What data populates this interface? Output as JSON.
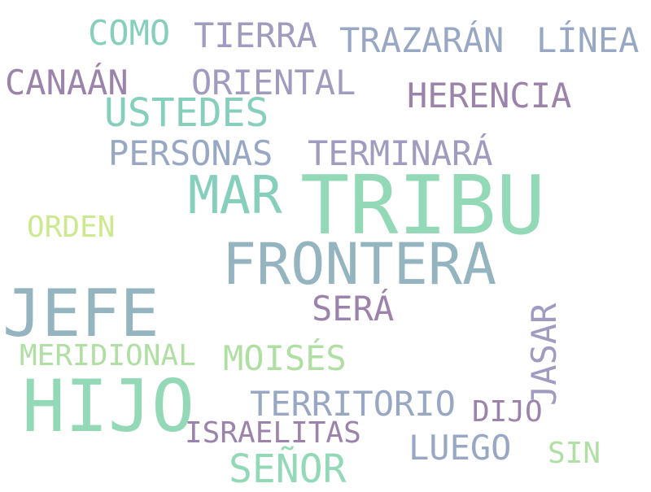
{
  "words": {
    "como": "COMO",
    "tierra": "TIERRA",
    "trazaran": "TRAZARÁN",
    "linea": "LÍNEA",
    "canaan": "CANAÁN",
    "oriental": "ORIENTAL",
    "ustedes": "USTEDES",
    "herencia": "HERENCIA",
    "personas": "PERSONAS",
    "terminara": "TERMINARÁ",
    "mar": "MAR",
    "tribu": "TRIBU",
    "orden": "ORDEN",
    "frontera": "FRONTERA",
    "jefe": "JEFE",
    "sera": "SERÁ",
    "jasar": "JASAR",
    "meridional": "MERIDIONAL",
    "moises": "MOISÉS",
    "hijo": "HIJO",
    "territorio": "TERRITORIO",
    "dijo": "DIJO",
    "israelitas": "ISRAELITAS",
    "luego": "LUEGO",
    "senor": "SEÑOR",
    "sin": "SIN"
  },
  "colors": {
    "background": "#ffffff",
    "teal": "#87cfbd",
    "green": "#93d9b8",
    "blue": "#94b5c0",
    "slate": "#98a8c4",
    "lavender": "#9f9cc0",
    "purple": "#9c83ac",
    "light_green": "#afdfa3",
    "lime": "#cde98e"
  }
}
